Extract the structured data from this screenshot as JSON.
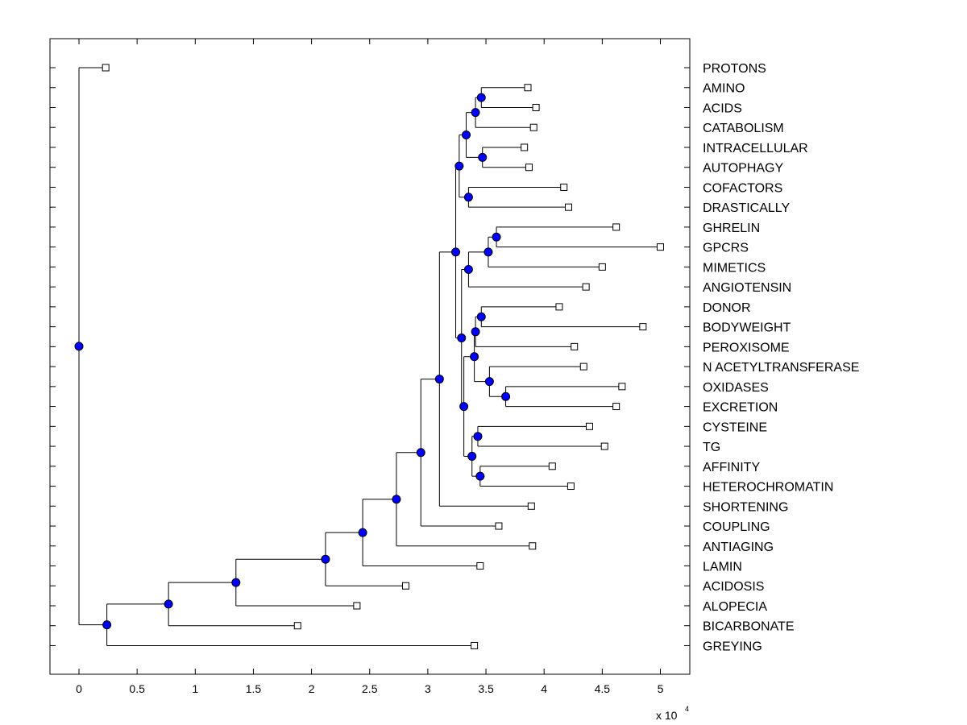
{
  "chart_data": {
    "type": "dendrogram",
    "title": "",
    "xlabel": "",
    "ylabel": "",
    "x_multiplier_label": "x 10",
    "x_multiplier_exponent": "4",
    "xlim": [
      -0.25,
      5.25
    ],
    "x_ticks": [
      0,
      0.5,
      1,
      1.5,
      2,
      2.5,
      3,
      3.5,
      4,
      4.5,
      5
    ],
    "x_tick_labels": [
      "0",
      "0.5",
      "1",
      "1.5",
      "2",
      "2.5",
      "3",
      "3.5",
      "4",
      "4.5",
      "5"
    ],
    "colors": {
      "node": "#0000ff",
      "line": "#000000",
      "leaf": "#ffffff"
    },
    "leaves": [
      {
        "label": "PROTONS",
        "x": 0.23
      },
      {
        "label": "AMINO",
        "x": 3.86
      },
      {
        "label": "ACIDS",
        "x": 3.93
      },
      {
        "label": "CATABOLISM",
        "x": 3.91
      },
      {
        "label": "INTRACELLULAR",
        "x": 3.83
      },
      {
        "label": "AUTOPHAGY",
        "x": 3.87
      },
      {
        "label": "COFACTORS",
        "x": 4.17
      },
      {
        "label": "DRASTICALLY",
        "x": 4.21
      },
      {
        "label": "GHRELIN",
        "x": 4.62
      },
      {
        "label": "GPCRS",
        "x": 5.0
      },
      {
        "label": "MIMETICS",
        "x": 4.5
      },
      {
        "label": "ANGIOTENSIN",
        "x": 4.36
      },
      {
        "label": "DONOR",
        "x": 4.13
      },
      {
        "label": "BODYWEIGHT",
        "x": 4.85
      },
      {
        "label": "PEROXISOME",
        "x": 4.26
      },
      {
        "label": "N ACETYLTRANSFERASE",
        "x": 4.34
      },
      {
        "label": "OXIDASES",
        "x": 4.67
      },
      {
        "label": "EXCRETION",
        "x": 4.62
      },
      {
        "label": "CYSTEINE",
        "x": 4.39
      },
      {
        "label": "TG",
        "x": 4.52
      },
      {
        "label": "AFFINITY",
        "x": 4.07
      },
      {
        "label": "HETEROCHROMATIN",
        "x": 4.23
      },
      {
        "label": "SHORTENING",
        "x": 3.89
      },
      {
        "label": "COUPLING",
        "x": 3.61
      },
      {
        "label": "ANTIAGING",
        "x": 3.9
      },
      {
        "label": "LAMIN",
        "x": 3.45
      },
      {
        "label": "ACIDOSIS",
        "x": 2.81
      },
      {
        "label": "ALOPECIA",
        "x": 2.39
      },
      {
        "label": "BICARBONATE",
        "x": 1.88
      },
      {
        "label": "GREYING",
        "x": 3.4
      }
    ],
    "merges": [
      {
        "a": "L1",
        "b": "L2",
        "x": 3.46
      },
      {
        "a": "N0",
        "b": "L3",
        "x": 3.41
      },
      {
        "a": "L4",
        "b": "L5",
        "x": 3.47
      },
      {
        "a": "N1",
        "b": "N2",
        "x": 3.33
      },
      {
        "a": "L6",
        "b": "L7",
        "x": 3.35
      },
      {
        "a": "N3",
        "b": "N4",
        "x": 3.27
      },
      {
        "a": "L8",
        "b": "L9",
        "x": 3.59
      },
      {
        "a": "N6",
        "b": "L10",
        "x": 3.52
      },
      {
        "a": "N7",
        "b": "L11",
        "x": 3.35
      },
      {
        "a": "L12",
        "b": "L13",
        "x": 3.46
      },
      {
        "a": "N9",
        "b": "L14",
        "x": 3.41
      },
      {
        "a": "L16",
        "b": "L17",
        "x": 3.67
      },
      {
        "a": "N11",
        "b": "L15",
        "x": 3.53
      },
      {
        "a": "N10",
        "b": "N12",
        "x": 3.4
      },
      {
        "a": "L18",
        "b": "L19",
        "x": 3.43
      },
      {
        "a": "L20",
        "b": "L21",
        "x": 3.45
      },
      {
        "a": "N14",
        "b": "N15",
        "x": 3.38
      },
      {
        "a": "N13",
        "b": "N16",
        "x": 3.31
      },
      {
        "a": "N17",
        "b": "N8",
        "x": 3.29
      },
      {
        "a": "N5",
        "b": "N18",
        "x": 3.24
      },
      {
        "a": "N19",
        "b": "L22",
        "x": 3.1
      },
      {
        "a": "N20",
        "b": "L23",
        "x": 2.94
      },
      {
        "a": "N21",
        "b": "L24",
        "x": 2.73
      },
      {
        "a": "N22",
        "b": "L25",
        "x": 2.44
      },
      {
        "a": "N23",
        "b": "L26",
        "x": 2.12
      },
      {
        "a": "N24",
        "b": "L27",
        "x": 1.35
      },
      {
        "a": "N25",
        "b": "L28",
        "x": 0.77
      },
      {
        "a": "N26",
        "b": "L29",
        "x": 0.24
      },
      {
        "a": "L0",
        "b": "N27",
        "x": 0.0
      }
    ]
  }
}
